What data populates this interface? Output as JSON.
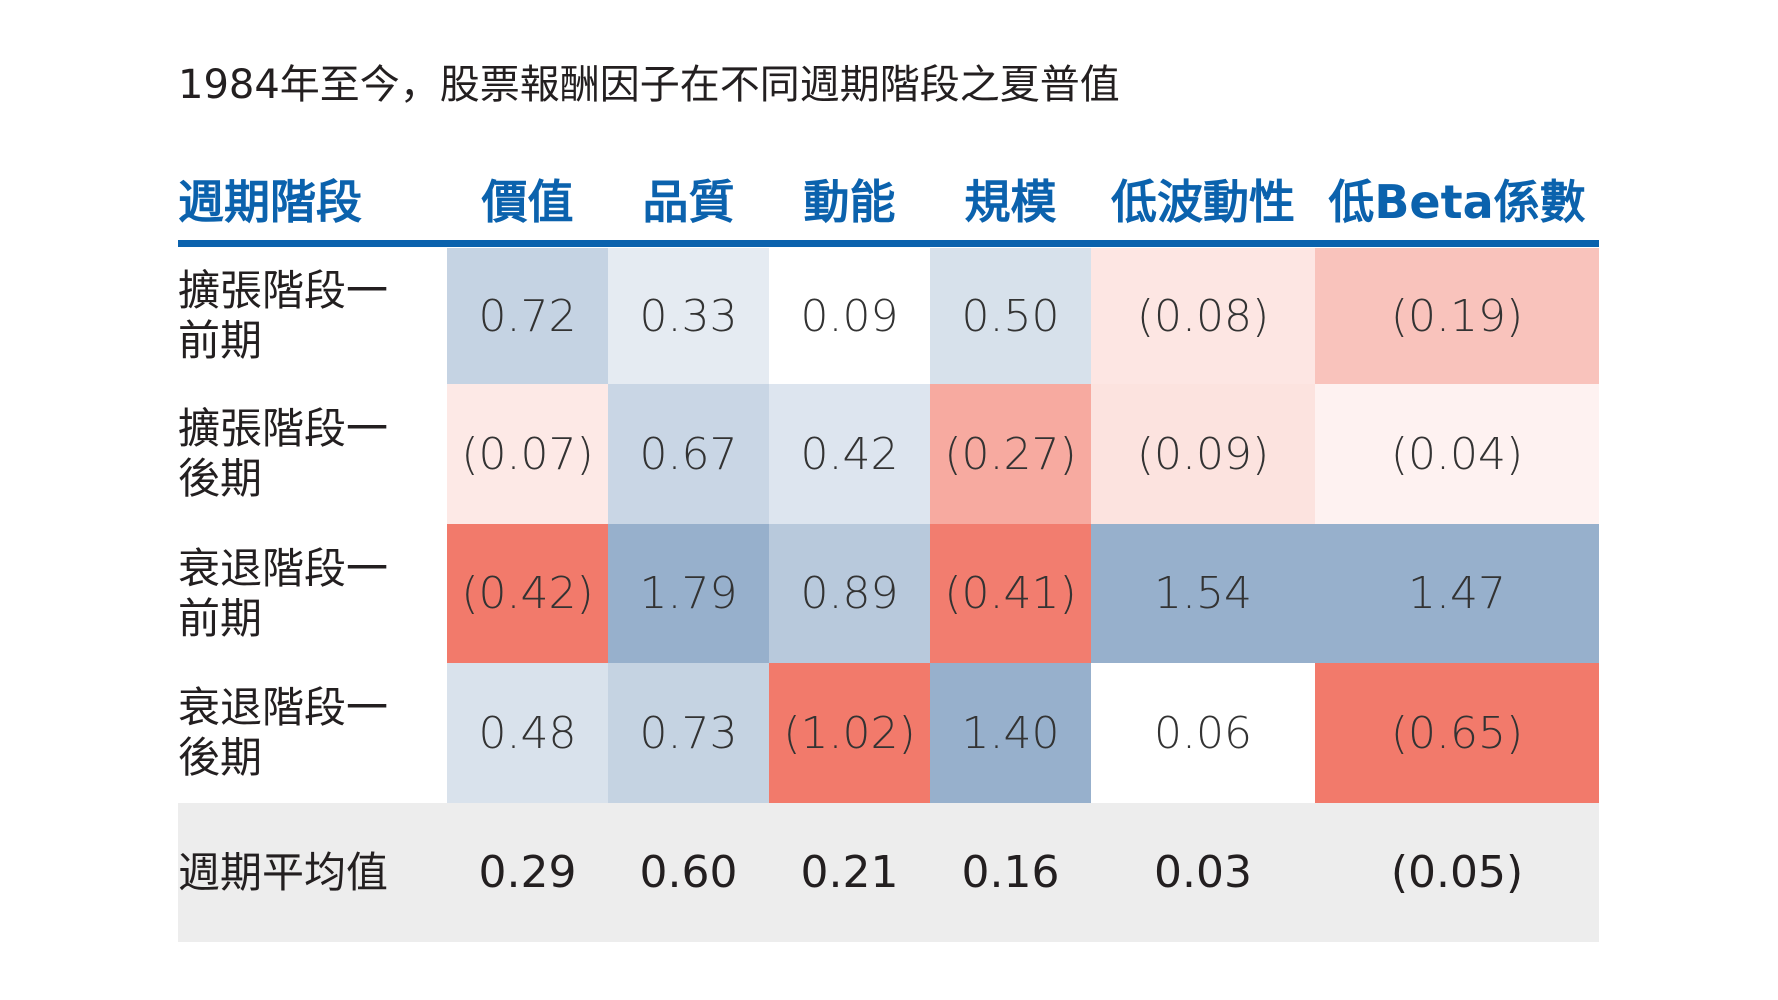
{
  "chart_data": {
    "type": "heatmap",
    "title": "1984年至今，股票報酬因子在不同週期階段之夏普值",
    "row_header": "週期階段",
    "columns": [
      "價值",
      "品質",
      "動能",
      "規模",
      "低波動性",
      "低Beta係數"
    ],
    "rows": [
      {
        "label_line1": "擴張階段一",
        "label_line2": "前期",
        "values": [
          0.72,
          0.33,
          0.09,
          0.5,
          -0.08,
          -0.19
        ],
        "display": [
          "0.72",
          "0.33",
          "0.09",
          "0.50",
          "(0.08)",
          "(0.19)"
        ]
      },
      {
        "label_line1": "擴張階段一",
        "label_line2": "後期",
        "values": [
          -0.07,
          0.67,
          0.42,
          -0.27,
          -0.09,
          -0.04
        ],
        "display": [
          "(0.07)",
          "0.67",
          "0.42",
          "(0.27)",
          "(0.09)",
          "(0.04)"
        ]
      },
      {
        "label_line1": "衰退階段一",
        "label_line2": "前期",
        "values": [
          -0.42,
          1.79,
          0.89,
          -0.41,
          1.54,
          1.47
        ],
        "display": [
          "(0.42)",
          "1.79",
          "0.89",
          "(0.41)",
          "1.54",
          "1.47"
        ]
      },
      {
        "label_line1": "衰退階段一",
        "label_line2": "後期",
        "values": [
          0.48,
          0.73,
          -1.02,
          1.4,
          0.06,
          -0.65
        ],
        "display": [
          "0.48",
          "0.73",
          "(1.02)",
          "1.40",
          "0.06",
          "(0.65)"
        ]
      }
    ],
    "average": {
      "label": "週期平均值",
      "values": [
        0.29,
        0.6,
        0.21,
        0.16,
        0.03,
        -0.05
      ],
      "display": [
        "0.29",
        "0.60",
        "0.21",
        "0.16",
        "0.03",
        "(0.05)"
      ]
    },
    "colors": {
      "header": "#0b62ad",
      "positive": "#97b0cc",
      "negative": "#f27a6b",
      "neutral": "#ffffff",
      "average_bg": "#ededed"
    }
  }
}
